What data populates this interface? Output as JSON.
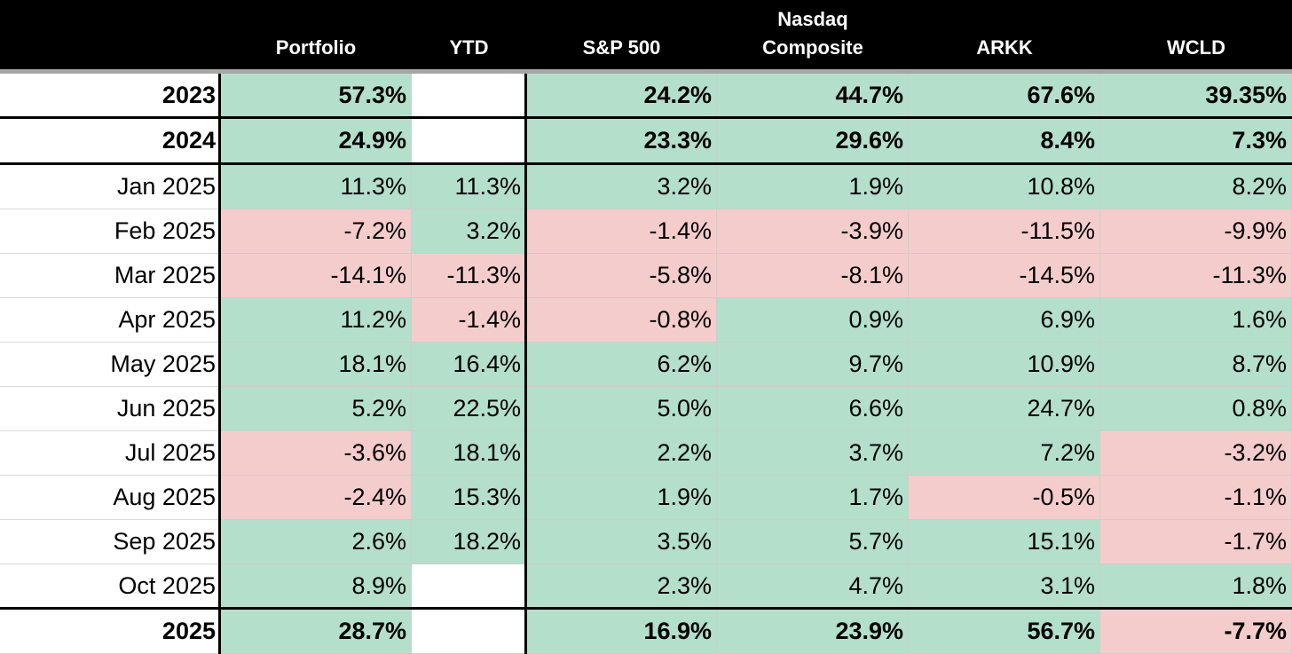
{
  "table": {
    "header": [
      "Portfolio",
      "YTD",
      "S&P 500",
      "Nasdaq\nComposite",
      "ARKK",
      "WCLD"
    ],
    "rows": [
      {
        "label": "2023",
        "bold": true,
        "values": [
          "57.3%",
          null,
          "24.2%",
          "44.7%",
          "67.6%",
          "39.35%"
        ]
      },
      {
        "label": "2024",
        "bold": true,
        "values": [
          "24.9%",
          null,
          "23.3%",
          "29.6%",
          "8.4%",
          "7.3%"
        ]
      },
      {
        "label": "Jan 2025",
        "bold": false,
        "values": [
          "11.3%",
          "11.3%",
          "3.2%",
          "1.9%",
          "10.8%",
          "8.2%"
        ]
      },
      {
        "label": "Feb 2025",
        "bold": false,
        "values": [
          "-7.2%",
          "3.2%",
          "-1.4%",
          "-3.9%",
          "-11.5%",
          "-9.9%"
        ]
      },
      {
        "label": "Mar 2025",
        "bold": false,
        "values": [
          "-14.1%",
          "-11.3%",
          "-5.8%",
          "-8.1%",
          "-14.5%",
          "-11.3%"
        ]
      },
      {
        "label": "Apr 2025",
        "bold": false,
        "values": [
          "11.2%",
          "-1.4%",
          "-0.8%",
          "0.9%",
          "6.9%",
          "1.6%"
        ]
      },
      {
        "label": "May 2025",
        "bold": false,
        "values": [
          "18.1%",
          "16.4%",
          "6.2%",
          "9.7%",
          "10.9%",
          "8.7%"
        ]
      },
      {
        "label": "Jun 2025",
        "bold": false,
        "values": [
          "5.2%",
          "22.5%",
          "5.0%",
          "6.6%",
          "24.7%",
          "0.8%"
        ]
      },
      {
        "label": "Jul 2025",
        "bold": false,
        "values": [
          "-3.6%",
          "18.1%",
          "2.2%",
          "3.7%",
          "7.2%",
          "-3.2%"
        ]
      },
      {
        "label": "Aug 2025",
        "bold": false,
        "values": [
          "-2.4%",
          "15.3%",
          "1.9%",
          "1.7%",
          "-0.5%",
          "-1.1%"
        ]
      },
      {
        "label": "Sep 2025",
        "bold": false,
        "values": [
          "2.6%",
          "18.2%",
          "3.5%",
          "5.7%",
          "15.1%",
          "-1.7%"
        ]
      },
      {
        "label": "Oct 2025",
        "bold": false,
        "values": [
          "8.9%",
          null,
          "2.3%",
          "4.7%",
          "3.1%",
          "1.8%"
        ]
      },
      {
        "label": "2025",
        "bold": true,
        "values": [
          "28.7%",
          null,
          "16.9%",
          "23.9%",
          "56.7%",
          "-7.7%"
        ]
      }
    ]
  }
}
